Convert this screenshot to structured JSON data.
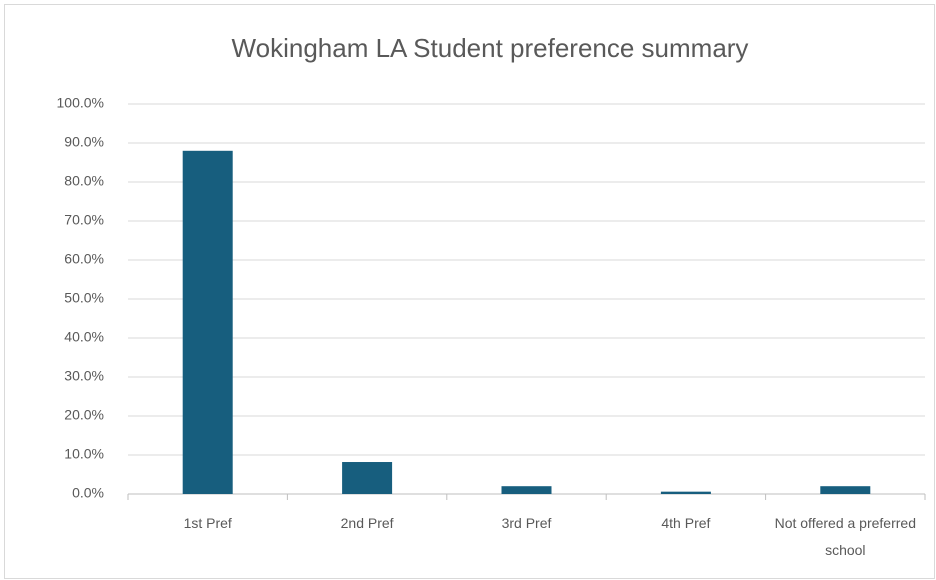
{
  "chart_data": {
    "type": "bar",
    "title": "Wokingham LA Student preference summary",
    "categories": [
      "1st Pref",
      "2nd Pref",
      "3rd Pref",
      "4th Pref",
      "Not offered a preferred school"
    ],
    "values": [
      88,
      8.2,
      2,
      0.6,
      2
    ],
    "color": "#175e7e",
    "ylim": [
      0,
      100
    ],
    "yticks": [
      {
        "value": 0,
        "label": "0.0%"
      },
      {
        "value": 10,
        "label": "10.0%"
      },
      {
        "value": 20,
        "label": "20.0%"
      },
      {
        "value": 30,
        "label": "30.0%"
      },
      {
        "value": 40,
        "label": "40.0%"
      },
      {
        "value": 50,
        "label": "50.0%"
      },
      {
        "value": 60,
        "label": "60.0%"
      },
      {
        "value": 70,
        "label": "70.0%"
      },
      {
        "value": 80,
        "label": "80.0%"
      },
      {
        "value": 90,
        "label": "90.0%"
      },
      {
        "value": 100,
        "label": "100.0%"
      }
    ],
    "grid": true
  }
}
